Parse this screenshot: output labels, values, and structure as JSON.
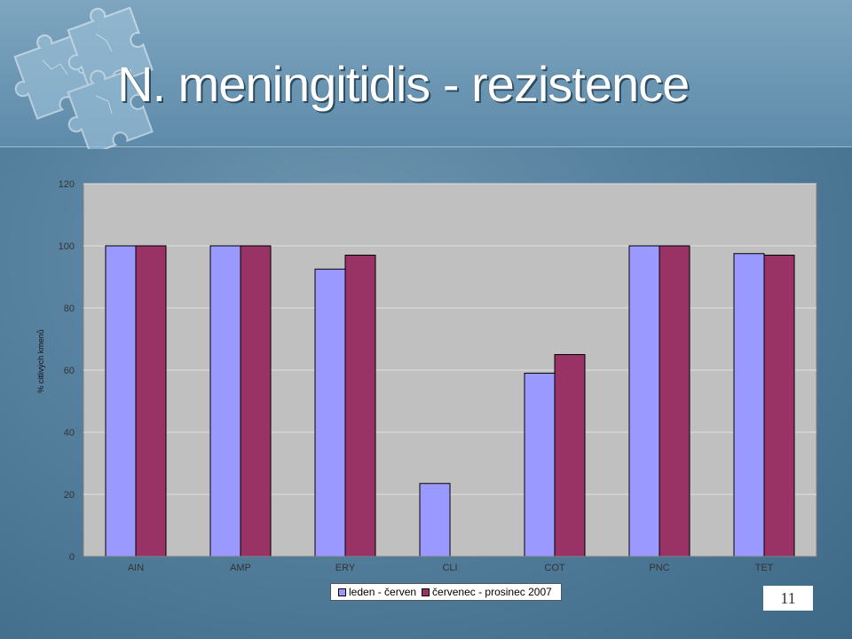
{
  "slide": {
    "title": "N. meningitidis - rezistence",
    "page_number": "11"
  },
  "colors": {
    "series1": "#9999ff",
    "series2": "#993366",
    "plot_bg": "#c0c0c0"
  },
  "chart_data": {
    "type": "bar",
    "categories": [
      "AIN",
      "AMP",
      "ERY",
      "CLI",
      "COT",
      "PNC",
      "TET"
    ],
    "series": [
      {
        "name": "leden - červen",
        "values": [
          100,
          100,
          92.5,
          23.5,
          59,
          100,
          97.5
        ]
      },
      {
        "name": "červenec - prosinec 2007",
        "values": [
          100,
          100,
          97,
          null,
          65,
          100,
          97
        ]
      }
    ],
    "ylabel": "% citlivých kmenů",
    "ylim": [
      0,
      120
    ],
    "yticks": [
      0,
      20,
      40,
      60,
      80,
      100,
      120
    ],
    "grid": true,
    "legend_position": "bottom"
  }
}
